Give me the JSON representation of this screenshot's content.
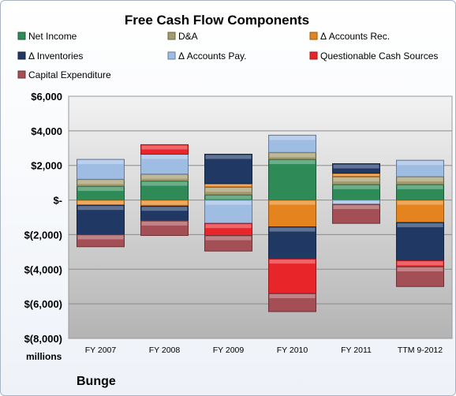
{
  "chart_data": {
    "type": "bar",
    "stacked": true,
    "title": "Free Cash Flow Components",
    "company": "Bunge",
    "unit_label": "millions",
    "categories": [
      "FY 2007",
      "FY 2008",
      "FY 2009",
      "FY 2010",
      "FY 2011",
      "TTM 9-2012"
    ],
    "ylim": [
      -8000,
      6000
    ],
    "yticks": [
      -8000,
      -6000,
      -4000,
      -2000,
      0,
      2000,
      4000,
      6000
    ],
    "ytick_labels": [
      "$(8,000)",
      "$(6,000)",
      "$(4,000)",
      "$(2,000)",
      "$-",
      "$2,000",
      "$4,000",
      "$6,000"
    ],
    "grid": true,
    "legend_position": "top",
    "series": [
      {
        "name": "Net Income",
        "color": "#2e8b57",
        "values": [
          800,
          1100,
          300,
          2350,
          900,
          900
        ]
      },
      {
        "name": "D&A",
        "color": "#a39a6e",
        "values": [
          400,
          400,
          450,
          400,
          450,
          450
        ]
      },
      {
        "name": "Δ Accounts Rec.",
        "color": "#e5841f",
        "values": [
          -300,
          -350,
          200,
          -1550,
          200,
          -1300
        ]
      },
      {
        "name": "Δ Inventories",
        "color": "#1f3864",
        "values": [
          -1700,
          -850,
          1700,
          -1850,
          550,
          -2200
        ]
      },
      {
        "name": "Δ Accounts Pay.",
        "color": "#9fbde3",
        "values": [
          1150,
          1150,
          -1350,
          1000,
          -250,
          950
        ]
      },
      {
        "name": "Questionable Cash Sources",
        "color": "#e8262a",
        "values": [
          0,
          550,
          -700,
          -2000,
          0,
          -350
        ]
      },
      {
        "name": "Capital Expenditure",
        "color": "#a34f55",
        "values": [
          -700,
          -850,
          -900,
          -1050,
          -1100,
          -1150
        ]
      }
    ]
  }
}
